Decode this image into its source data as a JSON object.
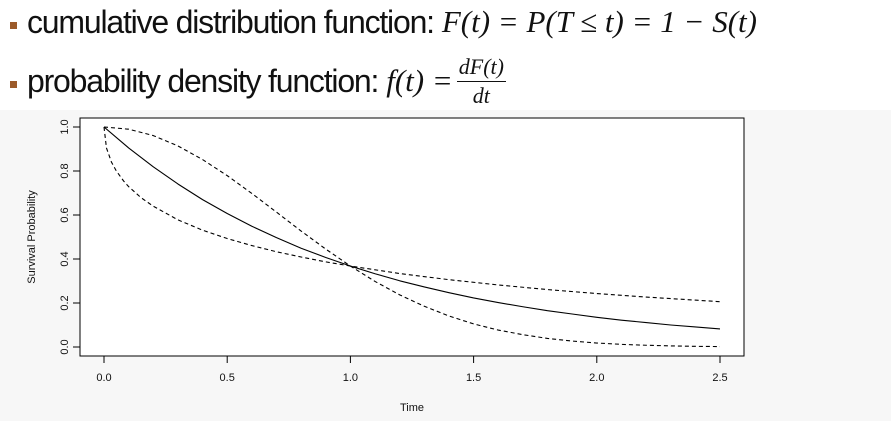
{
  "headline": {
    "cdf": {
      "label": "cumulative distribution function:",
      "formula": "F(t) = P(T ≤ t) = 1 − S(t)"
    },
    "pdf": {
      "label": "probability density function:",
      "lhs": "f(t) =",
      "numerator": "dF(t)",
      "denominator": "dt"
    }
  },
  "colors": {
    "bullet": "#9b5a2a",
    "line": "#000000",
    "panel_bg": "#f7f7f7"
  },
  "chart_data": {
    "type": "line",
    "title": "",
    "xlabel": "Time",
    "ylabel": "Survival Probability",
    "xlim": [
      0,
      2.5
    ],
    "ylim": [
      0,
      1.0
    ],
    "x_ticks": [
      "0.0",
      "0.5",
      "1.0",
      "1.5",
      "2.0",
      "2.5"
    ],
    "y_ticks": [
      "0.0",
      "0.2",
      "0.4",
      "0.6",
      "0.8",
      "1.0"
    ],
    "grid": false,
    "legend": "none",
    "series": [
      {
        "style": "solid",
        "x": [
          0.0,
          0.1,
          0.2,
          0.3,
          0.4,
          0.5,
          0.6,
          0.7,
          0.8,
          0.9,
          1.0,
          1.1,
          1.2,
          1.3,
          1.4,
          1.5,
          1.6,
          1.7,
          1.8,
          1.9,
          2.0,
          2.1,
          2.2,
          2.3,
          2.4,
          2.5
        ],
        "y": [
          1.0,
          0.905,
          0.819,
          0.741,
          0.67,
          0.607,
          0.549,
          0.497,
          0.449,
          0.407,
          0.368,
          0.333,
          0.301,
          0.273,
          0.247,
          0.223,
          0.202,
          0.183,
          0.165,
          0.15,
          0.135,
          0.122,
          0.111,
          0.1,
          0.091,
          0.082
        ]
      },
      {
        "style": "dashed",
        "x": [
          0.0,
          0.01,
          0.03,
          0.05,
          0.08,
          0.1,
          0.15,
          0.2,
          0.3,
          0.4,
          0.5,
          0.6,
          0.7,
          0.8,
          0.9,
          1.0,
          1.2,
          1.4,
          1.6,
          1.8,
          2.0,
          2.2,
          2.5
        ],
        "y": [
          1.0,
          0.905,
          0.841,
          0.8,
          0.754,
          0.729,
          0.679,
          0.64,
          0.578,
          0.531,
          0.493,
          0.461,
          0.433,
          0.409,
          0.387,
          0.368,
          0.334,
          0.306,
          0.282,
          0.261,
          0.243,
          0.227,
          0.206
        ]
      },
      {
        "style": "dashed",
        "x": [
          0.0,
          0.1,
          0.2,
          0.3,
          0.4,
          0.5,
          0.6,
          0.7,
          0.8,
          0.9,
          1.0,
          1.1,
          1.2,
          1.3,
          1.4,
          1.5,
          1.6,
          1.7,
          1.8,
          1.9,
          2.0,
          2.1,
          2.2,
          2.3,
          2.4,
          2.5
        ],
        "y": [
          1.0,
          0.99,
          0.961,
          0.914,
          0.852,
          0.779,
          0.698,
          0.613,
          0.527,
          0.445,
          0.368,
          0.298,
          0.237,
          0.185,
          0.141,
          0.105,
          0.077,
          0.056,
          0.039,
          0.027,
          0.018,
          0.012,
          0.008,
          0.005,
          0.003,
          0.002
        ]
      }
    ]
  }
}
